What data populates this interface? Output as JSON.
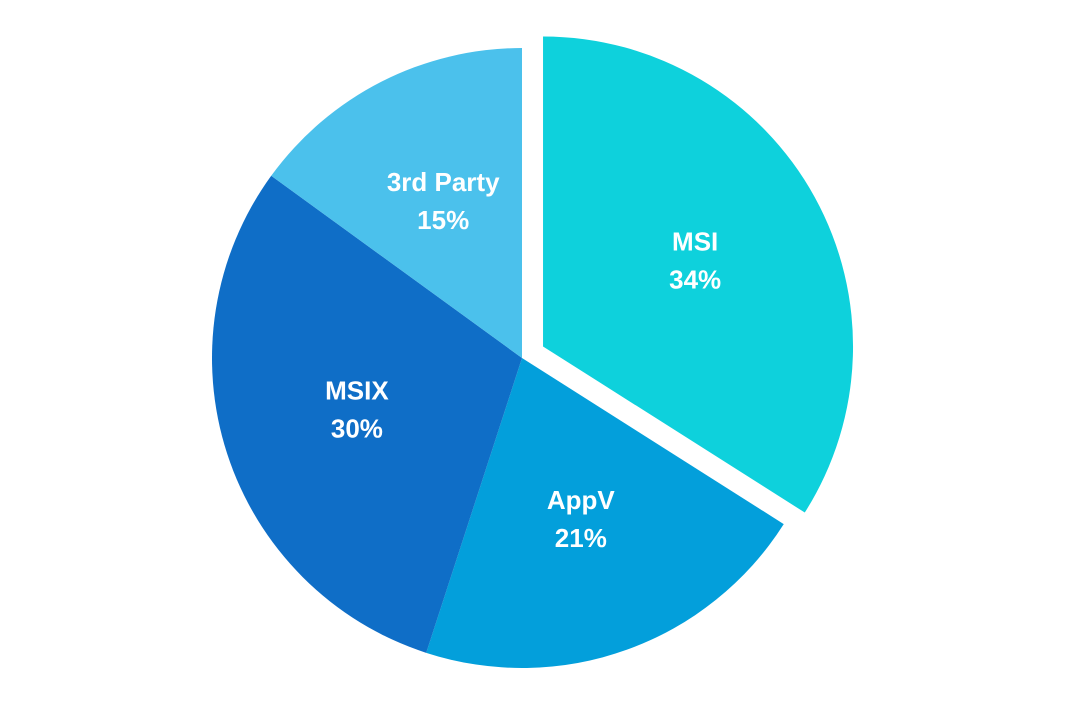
{
  "chart_data": {
    "type": "pie",
    "categories": [
      "MSI",
      "AppV",
      "MSIX",
      "3rd Party"
    ],
    "values": [
      34,
      21,
      30,
      15
    ],
    "value_labels": [
      "34%",
      "21%",
      "30%",
      "15%"
    ],
    "colors": [
      "#0ed1dc",
      "#039fdb",
      "#0f6ec7",
      "#4bc1ec"
    ],
    "explode": [
      true,
      false,
      false,
      false
    ]
  }
}
